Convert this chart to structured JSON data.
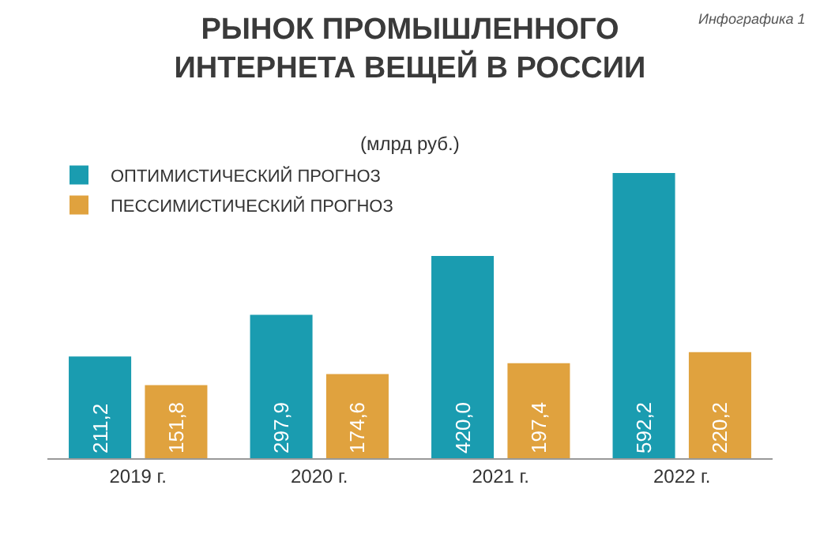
{
  "chart_data": {
    "type": "bar",
    "title": "РЫНОК ПРОМЫШЛЕННОГО\nИНТЕРНЕТА ВЕЩЕЙ В РОССИИ",
    "subtitle": "(млрд руб.)",
    "annotations": [
      "Инфографика 1"
    ],
    "categories": [
      "2019 г.",
      "2020 г.",
      "2021 г.",
      "2022 г."
    ],
    "series": [
      {
        "name": "ОПТИМИСТИЧЕСКИЙ ПРОГНОЗ",
        "color": "#1a9cb0",
        "values": [
          211.2,
          297.9,
          420.0,
          592.2
        ],
        "value_labels": [
          "211,2",
          "297,9",
          "420,0",
          "592,2"
        ]
      },
      {
        "name": "ПЕССИМИСТИЧЕСКИЙ ПРОГНОЗ",
        "color": "#e0a23e",
        "values": [
          151.8,
          174.6,
          197.4,
          220.2
        ],
        "value_labels": [
          "151,8",
          "174,6",
          "197,4",
          "220,2"
        ]
      }
    ],
    "legend": "top left",
    "grid": false
  }
}
